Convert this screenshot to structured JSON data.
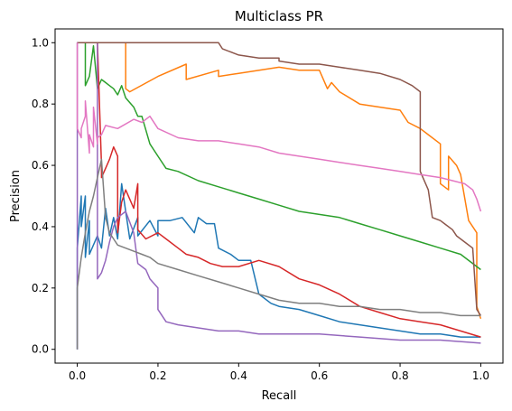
{
  "chart_data": {
    "type": "line",
    "title": "Multiclass PR",
    "xlabel": "Recall",
    "ylabel": "Precision",
    "xlim": [
      -0.055,
      1.055
    ],
    "ylim": [
      -0.045,
      1.045
    ],
    "xticks": [
      0.0,
      0.2,
      0.4,
      0.6,
      0.8,
      1.0
    ],
    "yticks": [
      0.0,
      0.2,
      0.4,
      0.6,
      0.8,
      1.0
    ],
    "xtick_labels": [
      "0.0",
      "0.2",
      "0.4",
      "0.6",
      "0.8",
      "1.0"
    ],
    "ytick_labels": [
      "0.0",
      "0.2",
      "0.4",
      "0.6",
      "0.8",
      "1.0"
    ],
    "grid": false,
    "series": [
      {
        "color": "#1f77b4",
        "x": [
          0.0,
          0.0,
          0.01,
          0.01,
          0.02,
          0.02,
          0.03,
          0.03,
          0.05,
          0.06,
          0.07,
          0.08,
          0.09,
          0.1,
          0.11,
          0.13,
          0.15,
          0.15,
          0.18,
          0.2,
          0.2,
          0.23,
          0.26,
          0.29,
          0.3,
          0.32,
          0.34,
          0.35,
          0.38,
          0.4,
          0.43,
          0.45,
          0.48,
          0.5,
          0.55,
          0.6,
          0.65,
          0.7,
          0.75,
          0.8,
          0.85,
          0.9,
          0.95,
          1.0
        ],
        "y": [
          0.0,
          0.33,
          0.5,
          0.4,
          0.5,
          0.3,
          0.42,
          0.31,
          0.37,
          0.33,
          0.46,
          0.37,
          0.43,
          0.36,
          0.54,
          0.36,
          0.43,
          0.37,
          0.42,
          0.37,
          0.42,
          0.42,
          0.43,
          0.38,
          0.43,
          0.41,
          0.41,
          0.33,
          0.31,
          0.29,
          0.29,
          0.18,
          0.15,
          0.14,
          0.13,
          0.11,
          0.09,
          0.08,
          0.07,
          0.06,
          0.05,
          0.05,
          0.04,
          0.04
        ]
      },
      {
        "color": "#ff7f0e",
        "x": [
          0.0,
          0.0,
          0.03,
          0.1,
          0.12,
          0.12,
          0.13,
          0.2,
          0.27,
          0.27,
          0.35,
          0.35,
          0.4,
          0.4,
          0.5,
          0.5,
          0.55,
          0.6,
          0.62,
          0.63,
          0.65,
          0.7,
          0.75,
          0.8,
          0.82,
          0.85,
          0.87,
          0.9,
          0.9,
          0.91,
          0.92,
          0.92,
          0.94,
          0.95,
          0.97,
          0.99,
          0.99,
          1.0
        ],
        "y": [
          1.0,
          1.0,
          1.0,
          1.0,
          1.0,
          0.85,
          0.84,
          0.89,
          0.93,
          0.88,
          0.91,
          0.89,
          0.9,
          0.9,
          0.92,
          0.92,
          0.91,
          0.91,
          0.85,
          0.87,
          0.84,
          0.8,
          0.79,
          0.78,
          0.74,
          0.72,
          0.7,
          0.67,
          0.54,
          0.53,
          0.52,
          0.63,
          0.6,
          0.57,
          0.42,
          0.38,
          0.14,
          0.1
        ]
      },
      {
        "color": "#2ca02c",
        "x": [
          0.0,
          0.0,
          0.02,
          0.02,
          0.03,
          0.04,
          0.05,
          0.06,
          0.07,
          0.08,
          0.09,
          0.1,
          0.11,
          0.12,
          0.14,
          0.15,
          0.16,
          0.18,
          0.2,
          0.22,
          0.25,
          0.3,
          0.35,
          0.4,
          0.45,
          0.5,
          0.55,
          0.6,
          0.65,
          0.7,
          0.75,
          0.8,
          0.85,
          0.9,
          0.95,
          1.0
        ],
        "y": [
          1.0,
          1.0,
          1.0,
          0.86,
          0.89,
          0.99,
          0.85,
          0.88,
          0.87,
          0.86,
          0.85,
          0.83,
          0.86,
          0.82,
          0.79,
          0.76,
          0.76,
          0.67,
          0.63,
          0.59,
          0.58,
          0.55,
          0.53,
          0.51,
          0.49,
          0.47,
          0.45,
          0.44,
          0.43,
          0.41,
          0.39,
          0.37,
          0.35,
          0.33,
          0.31,
          0.26
        ]
      },
      {
        "color": "#d62728",
        "x": [
          0.0,
          0.0,
          0.03,
          0.05,
          0.06,
          0.06,
          0.07,
          0.08,
          0.09,
          0.1,
          0.1,
          0.11,
          0.12,
          0.14,
          0.15,
          0.15,
          0.17,
          0.2,
          0.22,
          0.25,
          0.27,
          0.3,
          0.33,
          0.36,
          0.4,
          0.45,
          0.5,
          0.55,
          0.6,
          0.65,
          0.7,
          0.75,
          0.8,
          0.85,
          0.9,
          0.95,
          1.0
        ],
        "y": [
          1.0,
          1.0,
          1.0,
          1.0,
          0.6,
          0.56,
          0.59,
          0.62,
          0.66,
          0.63,
          0.38,
          0.48,
          0.52,
          0.46,
          0.54,
          0.39,
          0.36,
          0.38,
          0.36,
          0.33,
          0.31,
          0.3,
          0.28,
          0.27,
          0.27,
          0.29,
          0.27,
          0.23,
          0.21,
          0.18,
          0.14,
          0.12,
          0.1,
          0.09,
          0.08,
          0.06,
          0.04
        ]
      },
      {
        "color": "#9467bd",
        "x": [
          0.0,
          0.0,
          0.05,
          0.05,
          0.06,
          0.07,
          0.08,
          0.09,
          0.1,
          0.12,
          0.14,
          0.15,
          0.16,
          0.17,
          0.18,
          0.2,
          0.2,
          0.22,
          0.25,
          0.3,
          0.35,
          0.4,
          0.45,
          0.5,
          0.6,
          0.7,
          0.8,
          0.9,
          1.0
        ],
        "y": [
          0.0,
          1.0,
          1.0,
          0.23,
          0.25,
          0.29,
          0.35,
          0.4,
          0.43,
          0.45,
          0.38,
          0.28,
          0.27,
          0.26,
          0.23,
          0.2,
          0.13,
          0.09,
          0.08,
          0.07,
          0.06,
          0.06,
          0.05,
          0.05,
          0.05,
          0.04,
          0.03,
          0.03,
          0.02
        ]
      },
      {
        "color": "#8c564b",
        "x": [
          0.0,
          0.0,
          0.05,
          0.05,
          0.1,
          0.2,
          0.3,
          0.35,
          0.36,
          0.4,
          0.45,
          0.5,
          0.5,
          0.55,
          0.6,
          0.65,
          0.7,
          0.75,
          0.8,
          0.83,
          0.85,
          0.85,
          0.87,
          0.88,
          0.9,
          0.91,
          0.93,
          0.94,
          0.96,
          0.98,
          0.99,
          1.0
        ],
        "y": [
          1.0,
          1.0,
          1.0,
          1.0,
          1.0,
          1.0,
          1.0,
          1.0,
          0.98,
          0.96,
          0.95,
          0.95,
          0.94,
          0.93,
          0.93,
          0.92,
          0.91,
          0.9,
          0.88,
          0.86,
          0.84,
          0.58,
          0.52,
          0.43,
          0.42,
          0.41,
          0.39,
          0.37,
          0.35,
          0.33,
          0.13,
          0.11
        ]
      },
      {
        "color": "#e377c2",
        "x": [
          0.0,
          0.0,
          0.01,
          0.01,
          0.02,
          0.02,
          0.03,
          0.03,
          0.04,
          0.04,
          0.05,
          0.05,
          0.06,
          0.07,
          0.1,
          0.14,
          0.16,
          0.18,
          0.2,
          0.25,
          0.3,
          0.35,
          0.4,
          0.45,
          0.5,
          0.55,
          0.6,
          0.65,
          0.7,
          0.75,
          0.8,
          0.85,
          0.9,
          0.93,
          0.96,
          0.98,
          0.99,
          1.0
        ],
        "y": [
          1.0,
          0.72,
          0.69,
          0.72,
          0.76,
          0.81,
          0.64,
          0.7,
          0.66,
          0.79,
          0.67,
          0.69,
          0.7,
          0.73,
          0.72,
          0.75,
          0.74,
          0.76,
          0.72,
          0.69,
          0.68,
          0.68,
          0.67,
          0.66,
          0.64,
          0.63,
          0.62,
          0.61,
          0.6,
          0.59,
          0.58,
          0.57,
          0.56,
          0.55,
          0.54,
          0.52,
          0.49,
          0.45
        ]
      },
      {
        "color": "#7f7f7f",
        "x": [
          0.0,
          0.0,
          0.01,
          0.02,
          0.03,
          0.04,
          0.05,
          0.06,
          0.07,
          0.08,
          0.09,
          0.1,
          0.12,
          0.14,
          0.16,
          0.18,
          0.2,
          0.25,
          0.3,
          0.35,
          0.4,
          0.45,
          0.5,
          0.55,
          0.6,
          0.65,
          0.7,
          0.75,
          0.8,
          0.85,
          0.9,
          0.95,
          1.0
        ],
        "y": [
          0.0,
          0.2,
          0.3,
          0.38,
          0.45,
          0.5,
          0.56,
          0.62,
          0.43,
          0.38,
          0.36,
          0.34,
          0.33,
          0.32,
          0.31,
          0.3,
          0.28,
          0.26,
          0.24,
          0.22,
          0.2,
          0.18,
          0.16,
          0.15,
          0.15,
          0.14,
          0.14,
          0.13,
          0.13,
          0.12,
          0.12,
          0.11,
          0.11
        ]
      }
    ]
  }
}
